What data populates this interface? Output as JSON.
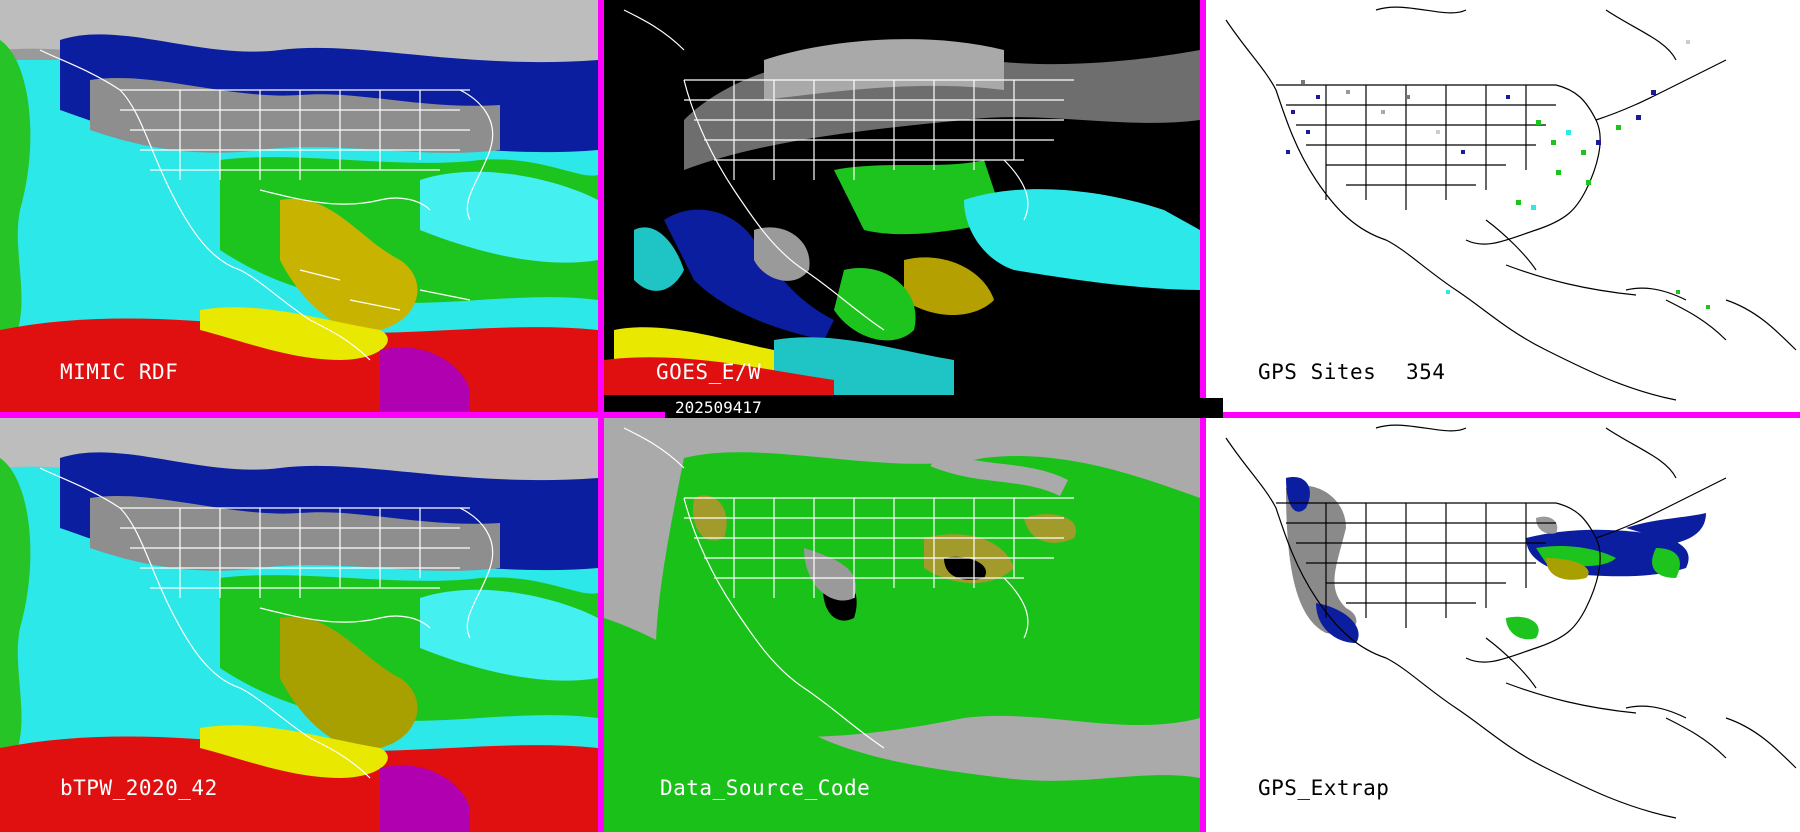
{
  "panels": [
    {
      "id": "mimic",
      "label": "MIMIC RDF"
    },
    {
      "id": "goes",
      "label": "GOES_E/W"
    },
    {
      "id": "gps_sites",
      "label": "GPS Sites",
      "count": "354"
    },
    {
      "id": "btpw",
      "label": "bTPW_2020_42"
    },
    {
      "id": "data_source",
      "label": "Data_Source_Code"
    },
    {
      "id": "gps_extrap",
      "label": "GPS_Extrap"
    }
  ],
  "timestamp": "202509417",
  "colors": {
    "border": "#ff00ff",
    "land": "#ffffff",
    "coast": "#000000"
  }
}
